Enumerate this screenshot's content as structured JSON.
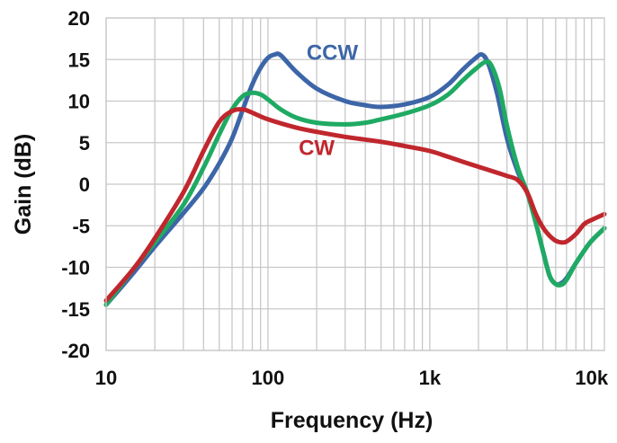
{
  "chart_data": {
    "type": "line",
    "title": "",
    "xlabel": "Frequency (Hz)",
    "ylabel": "Gain (dB)",
    "xscale": "log",
    "xlim": [
      10,
      12000
    ],
    "ylim": [
      -20,
      20
    ],
    "grid": true,
    "legend": "inline",
    "x_ticks": [
      {
        "value": 10,
        "label": "10"
      },
      {
        "value": 100,
        "label": "100"
      },
      {
        "value": 1000,
        "label": "1k"
      },
      {
        "value": 10000,
        "label": "10k"
      }
    ],
    "y_ticks": [
      {
        "value": 20,
        "label": "20"
      },
      {
        "value": 15,
        "label": "15"
      },
      {
        "value": 10,
        "label": "10"
      },
      {
        "value": 5,
        "label": "5"
      },
      {
        "value": 0,
        "label": "0"
      },
      {
        "value": -5,
        "label": "-5"
      },
      {
        "value": -10,
        "label": "-10"
      },
      {
        "value": -15,
        "label": "-15"
      },
      {
        "value": -20,
        "label": "-20"
      }
    ],
    "series": [
      {
        "name": "CCW",
        "color": "#3d66a8",
        "label_at": [
          250,
          15
        ],
        "points": [
          [
            10,
            -14.5
          ],
          [
            15,
            -10.5
          ],
          [
            20,
            -7.5
          ],
          [
            30,
            -3.5
          ],
          [
            40,
            -0.5
          ],
          [
            50,
            2.5
          ],
          [
            60,
            5.5
          ],
          [
            70,
            9
          ],
          [
            80,
            12
          ],
          [
            90,
            14
          ],
          [
            100,
            15.2
          ],
          [
            110,
            15.6
          ],
          [
            120,
            15.5
          ],
          [
            150,
            13.5
          ],
          [
            200,
            11.5
          ],
          [
            300,
            10
          ],
          [
            400,
            9.5
          ],
          [
            500,
            9.3
          ],
          [
            700,
            9.6
          ],
          [
            1000,
            10.5
          ],
          [
            1300,
            12
          ],
          [
            1600,
            13.8
          ],
          [
            1900,
            15.1
          ],
          [
            2100,
            15.6
          ],
          [
            2300,
            14.5
          ],
          [
            2600,
            11
          ],
          [
            3000,
            5.5
          ],
          [
            3500,
            1.5
          ],
          [
            4000,
            -1
          ],
          [
            4500,
            -4.5
          ],
          [
            5000,
            -8
          ],
          [
            5500,
            -11
          ],
          [
            6000,
            -12
          ],
          [
            6500,
            -11.9
          ],
          [
            7000,
            -11.3
          ],
          [
            8000,
            -9.5
          ],
          [
            9000,
            -8
          ],
          [
            10000,
            -6.8
          ],
          [
            12000,
            -5.3
          ]
        ]
      },
      {
        "name": "",
        "color": "#1faa63",
        "points": [
          [
            10,
            -14.5
          ],
          [
            15,
            -10
          ],
          [
            20,
            -7
          ],
          [
            30,
            -2.5
          ],
          [
            40,
            2
          ],
          [
            50,
            6
          ],
          [
            60,
            9
          ],
          [
            70,
            10.6
          ],
          [
            80,
            11
          ],
          [
            90,
            10.8
          ],
          [
            100,
            10.2
          ],
          [
            120,
            9
          ],
          [
            150,
            8
          ],
          [
            200,
            7.4
          ],
          [
            300,
            7.2
          ],
          [
            400,
            7.4
          ],
          [
            500,
            7.8
          ],
          [
            700,
            8.5
          ],
          [
            1000,
            9.5
          ],
          [
            1300,
            10.8
          ],
          [
            1600,
            12.5
          ],
          [
            1900,
            13.8
          ],
          [
            2200,
            14.7
          ],
          [
            2400,
            14.3
          ],
          [
            2700,
            11.5
          ],
          [
            3000,
            7
          ],
          [
            3500,
            2
          ],
          [
            4000,
            -1
          ],
          [
            4500,
            -4.5
          ],
          [
            5000,
            -8
          ],
          [
            5500,
            -11
          ],
          [
            6000,
            -12
          ],
          [
            6500,
            -12.1
          ],
          [
            7000,
            -11.5
          ],
          [
            8000,
            -9.5
          ],
          [
            9000,
            -8
          ],
          [
            10000,
            -6.8
          ],
          [
            12000,
            -5.3
          ]
        ]
      },
      {
        "name": "CW",
        "color": "#c0272d",
        "label_at": [
          200,
          3.5
        ],
        "points": [
          [
            10,
            -14
          ],
          [
            15,
            -10
          ],
          [
            20,
            -6.5
          ],
          [
            30,
            -1
          ],
          [
            40,
            4
          ],
          [
            50,
            7.5
          ],
          [
            60,
            8.8
          ],
          [
            70,
            9
          ],
          [
            80,
            8.6
          ],
          [
            100,
            7.8
          ],
          [
            150,
            6.8
          ],
          [
            200,
            6.3
          ],
          [
            300,
            5.7
          ],
          [
            500,
            5.1
          ],
          [
            700,
            4.6
          ],
          [
            1000,
            4
          ],
          [
            1300,
            3.3
          ],
          [
            1600,
            2.7
          ],
          [
            2000,
            2.1
          ],
          [
            2500,
            1.5
          ],
          [
            3000,
            1
          ],
          [
            3500,
            0.5
          ],
          [
            4000,
            -1
          ],
          [
            4500,
            -3.5
          ],
          [
            5000,
            -5.2
          ],
          [
            5500,
            -6.2
          ],
          [
            6000,
            -6.8
          ],
          [
            6500,
            -7
          ],
          [
            7000,
            -6.9
          ],
          [
            8000,
            -6
          ],
          [
            9000,
            -4.8
          ],
          [
            10000,
            -4.3
          ],
          [
            12000,
            -3.6
          ]
        ]
      }
    ]
  }
}
